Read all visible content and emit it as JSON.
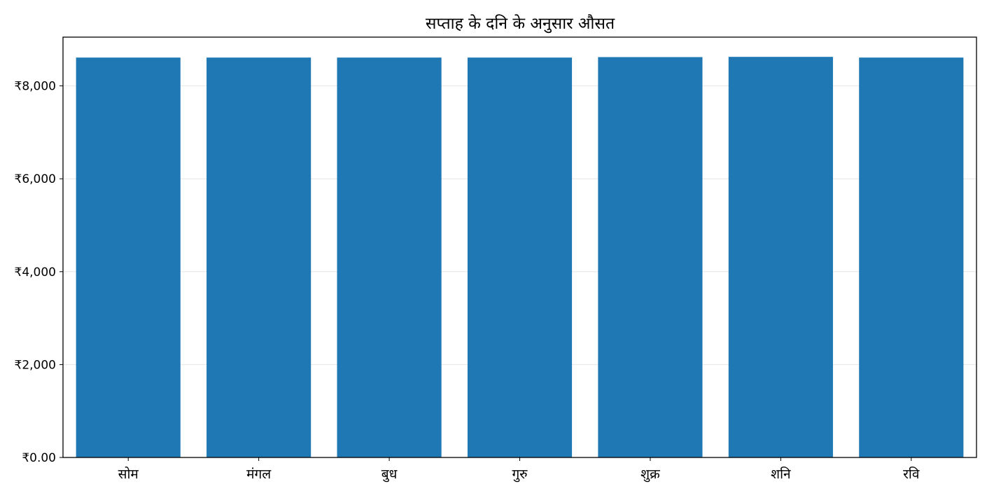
{
  "chart_data": {
    "type": "bar",
    "title": "सप्ताह के दनि के अनुसार औसत",
    "xlabel": "",
    "ylabel": "",
    "categories": [
      "सोम",
      "मंगल",
      "बुध",
      "गुरु",
      "शुक्र",
      "शनि",
      "रवि"
    ],
    "values": [
      8610,
      8610,
      8610,
      8610,
      8620,
      8625,
      8610
    ],
    "ylim": [
      0,
      9050
    ],
    "yticks": [
      0,
      2000,
      4000,
      6000,
      8000
    ],
    "ytick_labels": [
      "₹0.00",
      "₹2,000",
      "₹4,000",
      "₹6,000",
      "₹8,000"
    ],
    "grid": "horizontal",
    "legend": "none",
    "bar_color": "#1f77b4",
    "grid_color": "#e6e6e6"
  }
}
